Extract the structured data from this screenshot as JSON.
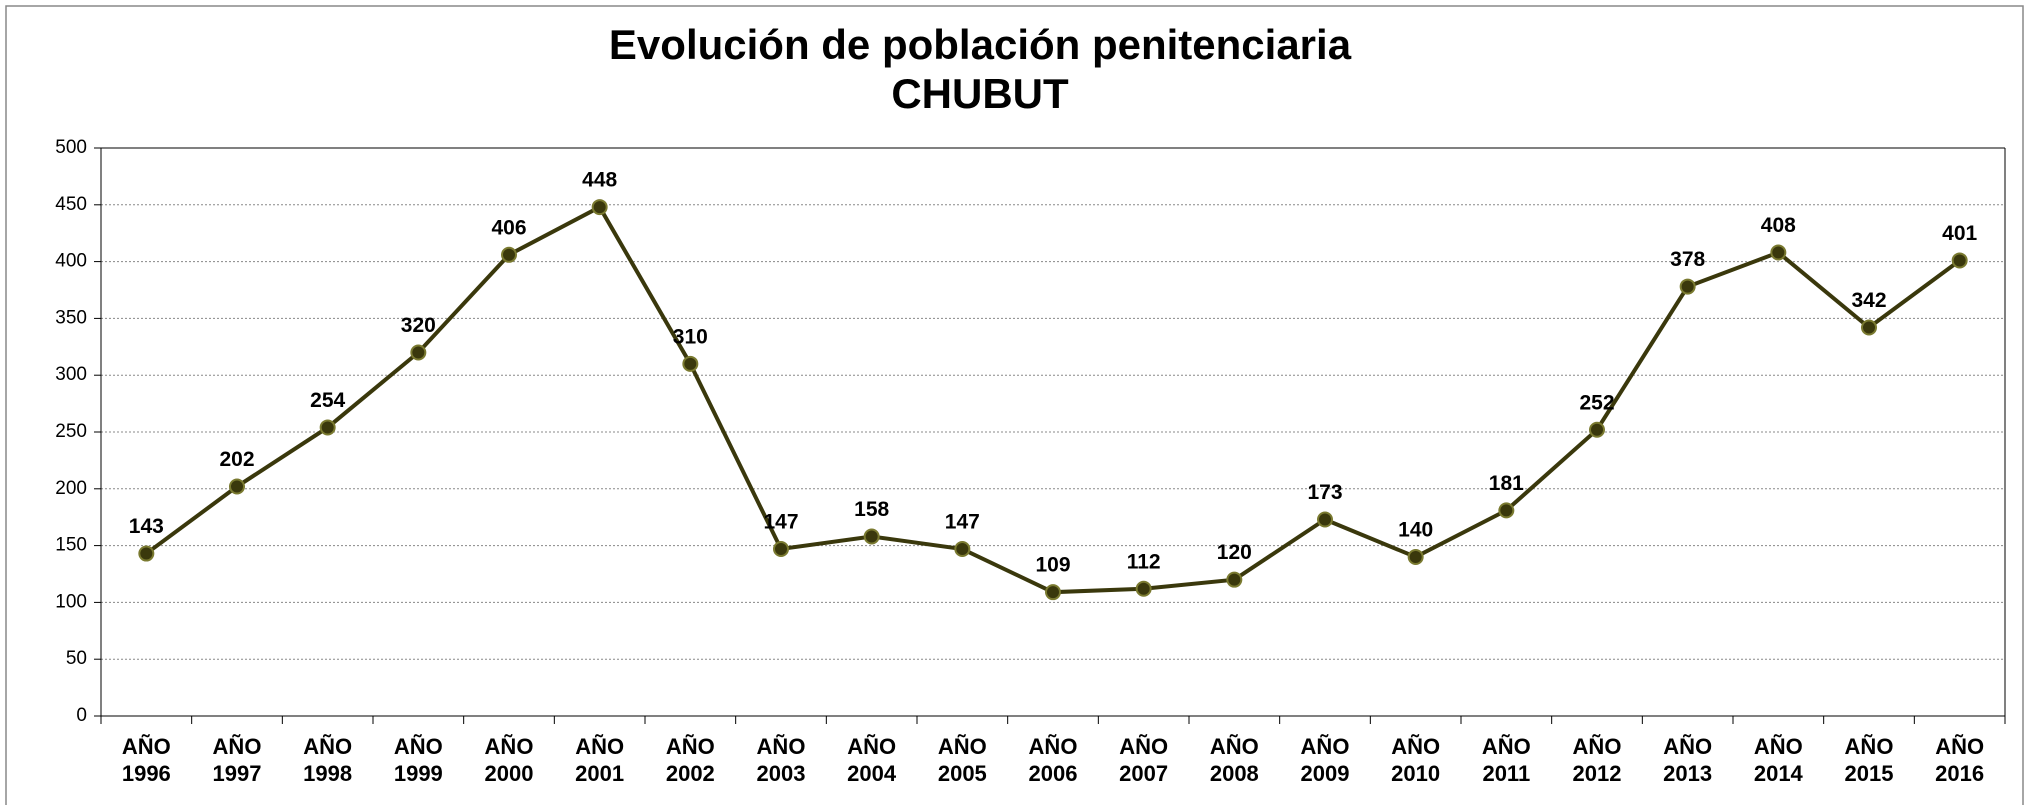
{
  "chart_data": {
    "type": "line",
    "title": "Evolución de población penitenciaria",
    "subtitle": "CHUBUT",
    "categories": [
      "AÑO\n1996",
      "AÑO\n1997",
      "AÑO\n1998",
      "AÑO\n1999",
      "AÑO\n2000",
      "AÑO\n2001",
      "AÑO\n2002",
      "AÑO\n2003",
      "AÑO\n2004",
      "AÑO\n2005",
      "AÑO\n2006",
      "AÑO\n2007",
      "AÑO\n2008",
      "AÑO\n2009",
      "AÑO\n2010",
      "AÑO\n2011",
      "AÑO\n2012",
      "AÑO\n2013",
      "AÑO\n2014",
      "AÑO\n2015",
      "AÑO\n2016"
    ],
    "values": [
      143,
      202,
      254,
      320,
      406,
      448,
      310,
      147,
      158,
      147,
      109,
      112,
      120,
      173,
      140,
      181,
      252,
      378,
      408,
      342,
      401
    ],
    "color": "#3a380c",
    "ylim": [
      0,
      500
    ],
    "yticks": [
      0,
      50,
      100,
      150,
      200,
      250,
      300,
      350,
      400,
      450,
      500
    ],
    "grid": true
  }
}
